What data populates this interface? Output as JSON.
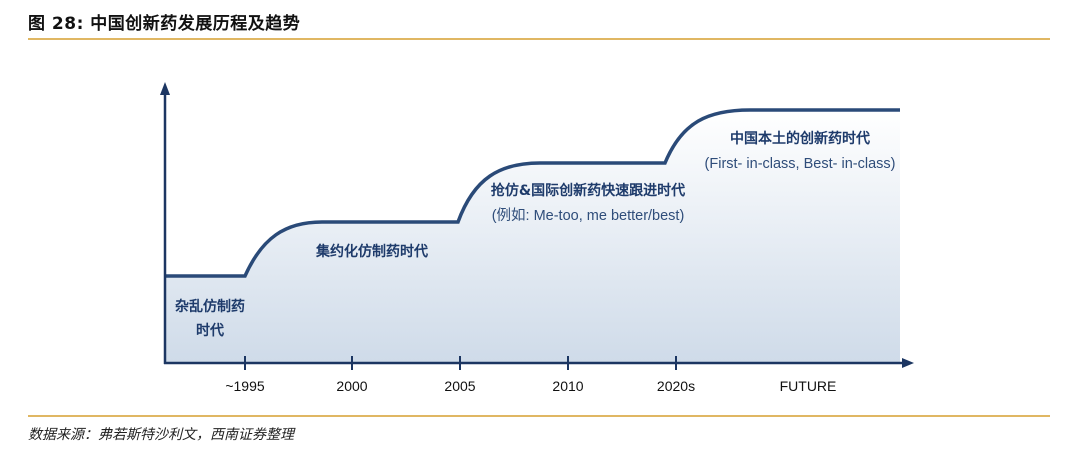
{
  "figure": {
    "title": "图 28:  中国创新药发展历程及趋势",
    "source": "数据来源：弗若斯特沙利文，西南证券整理"
  },
  "timeline": {
    "ticks": [
      "~1995",
      "2000",
      "2005",
      "2010",
      "2020s",
      "FUTURE"
    ],
    "stages": [
      {
        "lines": [
          "杂乱仿制药",
          "时代"
        ]
      },
      {
        "lines": [
          "集约化仿制药时代"
        ]
      },
      {
        "lines": [
          "抢仿&国际创新药快速跟进时代",
          "(例如: Me-too, me better/best)"
        ]
      },
      {
        "lines": [
          "中国本土的创新药时代",
          "(First- in-class, Best- in-class)"
        ]
      }
    ]
  },
  "colors": {
    "line": "#2a4a78",
    "axis": "#1c3662",
    "fill_top": "#ffffff",
    "fill_bottom": "#cfdbe9",
    "rule": "#e0b763"
  }
}
